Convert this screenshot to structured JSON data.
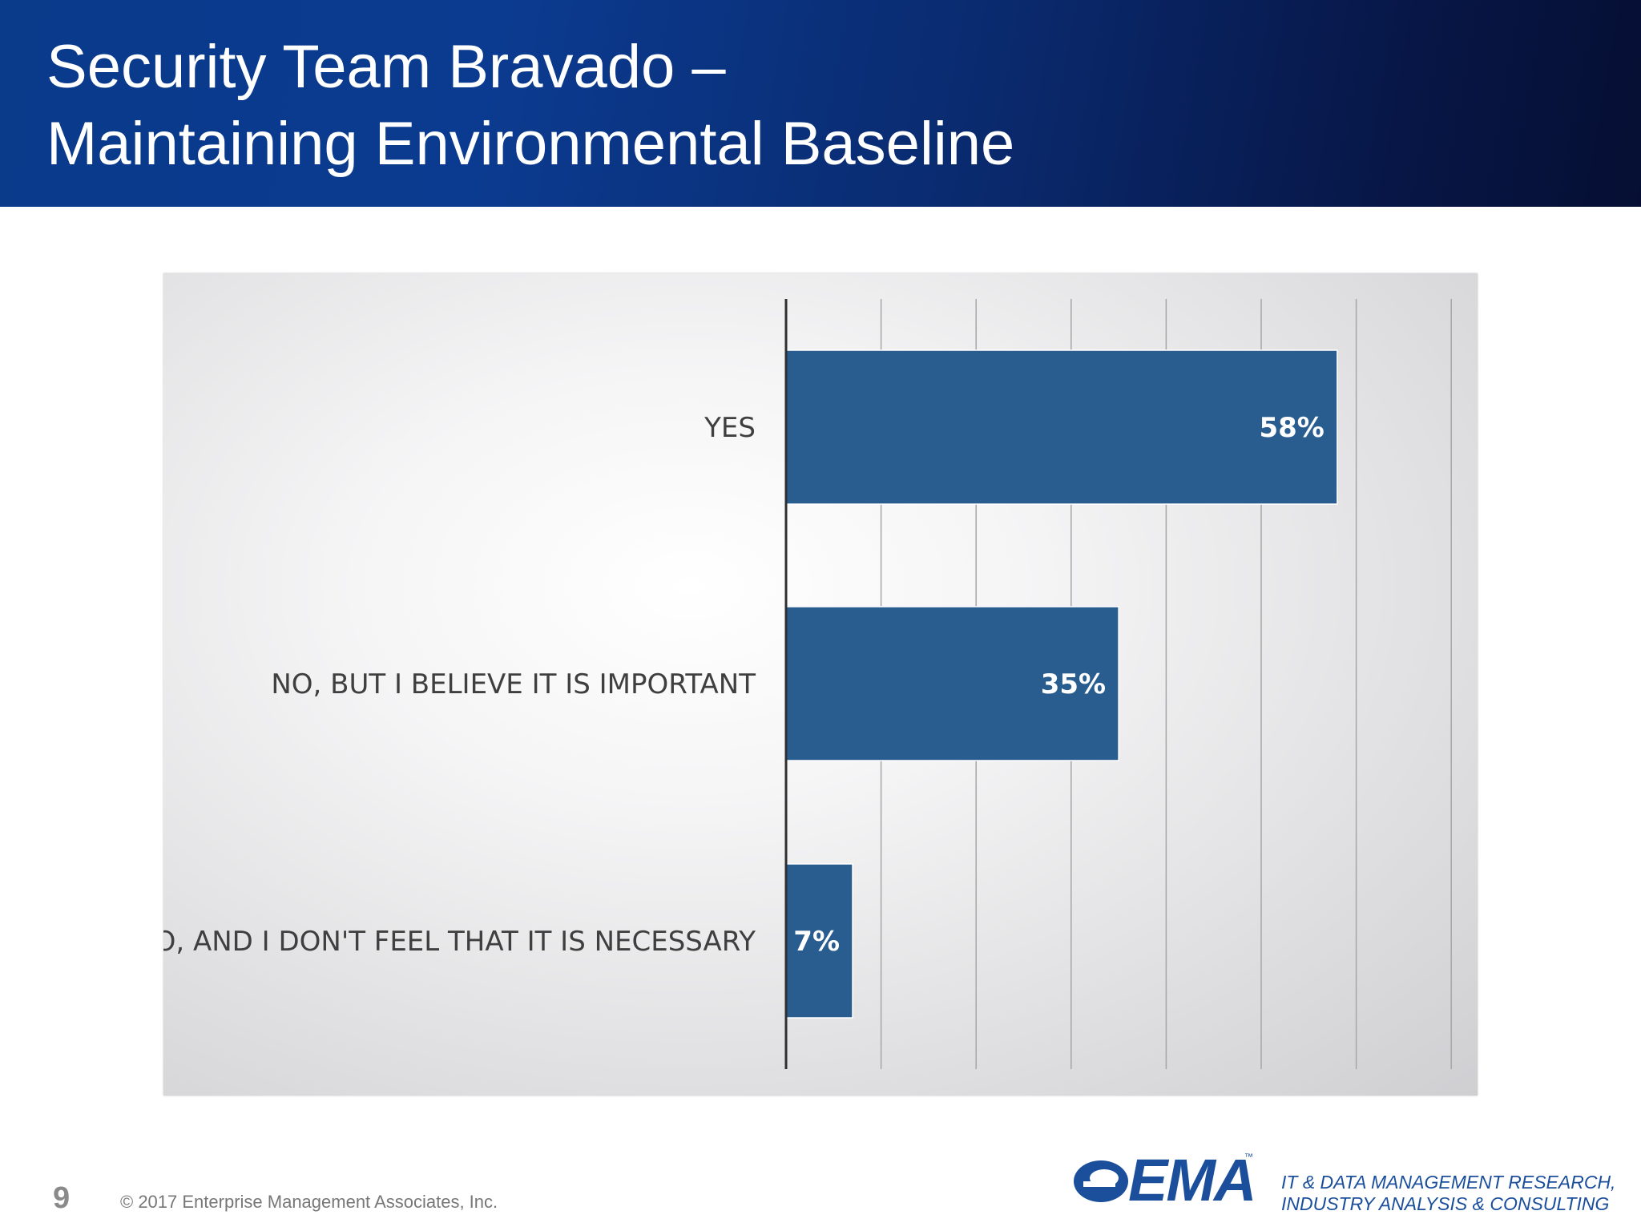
{
  "slide": {
    "title_line_1": "Security Team Bravado –",
    "title_line_2": "Maintaining Environmental Baseline",
    "page_number": "9",
    "copyright": "© 2017 Enterprise Management Associates, Inc."
  },
  "brand": {
    "logo_text": "EMA",
    "logo_tm": "™",
    "tagline_1": "IT & DATA MANAGEMENT RESEARCH,",
    "tagline_2": "INDUSTRY ANALYSIS & CONSULTING",
    "color": "#1b4f9c"
  },
  "colors": {
    "bar": "#2a5d8f",
    "header_dark": "#060f33",
    "header_light": "#0a3a8a"
  },
  "chart_data": {
    "type": "bar",
    "orientation": "horizontal",
    "categories": [
      "YES",
      "NO, BUT I BELIEVE IT IS IMPORTANT",
      "NO, AND I DON'T FEEL THAT IT IS NECESSARY"
    ],
    "values": [
      58,
      35,
      7
    ],
    "value_labels": [
      "58%",
      "35%",
      "7%"
    ],
    "xlim": [
      0,
      70
    ],
    "gridline_step": 10,
    "grid": true,
    "legend": "none",
    "title": "",
    "xlabel": "",
    "ylabel": ""
  }
}
